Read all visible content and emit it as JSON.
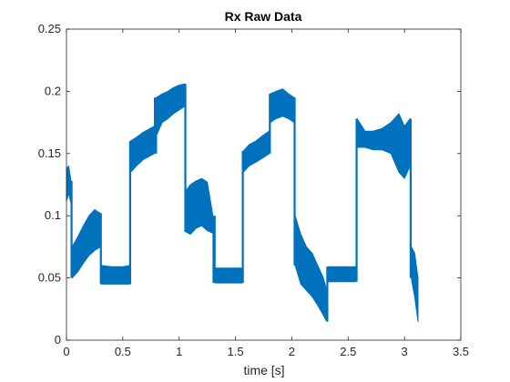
{
  "chart_data": {
    "type": "line",
    "title": "Rx Raw Data",
    "xlabel": "time [s]",
    "ylabel": "",
    "xlim": [
      0,
      3.5
    ],
    "ylim": [
      0,
      0.25
    ],
    "x_ticks": [
      0,
      0.5,
      1,
      1.5,
      2,
      2.5,
      3,
      3.5
    ],
    "x_tick_labels": [
      "0",
      "0.5",
      "1",
      "1.5",
      "2",
      "2.5",
      "3",
      "3.5"
    ],
    "y_ticks": [
      0,
      0.05,
      0.1,
      0.15,
      0.2,
      0.25
    ],
    "y_tick_labels": [
      "0",
      "0.05",
      "0.1",
      "0.15",
      "0.2",
      "0.25"
    ],
    "grid": false,
    "box": true,
    "series": [
      {
        "color": "#0072bd",
        "segments": [
          {
            "x": [
              0.0,
              0.02,
              0.04
            ],
            "low": [
              0.112,
              0.118,
              0.11
            ],
            "high": [
              0.138,
              0.14,
              0.128
            ]
          },
          {
            "x": [
              0.05,
              0.1,
              0.15,
              0.2,
              0.25,
              0.3
            ],
            "low": [
              0.05,
              0.055,
              0.062,
              0.068,
              0.072,
              0.075
            ],
            "high": [
              0.075,
              0.083,
              0.092,
              0.1,
              0.105,
              0.102
            ]
          },
          {
            "x": [
              0.31,
              0.4,
              0.5,
              0.56
            ],
            "low": [
              0.045,
              0.045,
              0.045,
              0.045
            ],
            "high": [
              0.06,
              0.059,
              0.059,
              0.06
            ]
          },
          {
            "x": [
              0.57,
              0.62,
              0.68,
              0.74,
              0.78
            ],
            "low": [
              0.135,
              0.14,
              0.145,
              0.148,
              0.15
            ],
            "high": [
              0.16,
              0.163,
              0.167,
              0.17,
              0.172
            ]
          },
          {
            "x": [
              0.8,
              0.85,
              0.9,
              0.95,
              1.0,
              1.05
            ],
            "low": [
              0.165,
              0.175,
              0.178,
              0.182,
              0.185,
              0.188
            ],
            "high": [
              0.195,
              0.198,
              0.2,
              0.203,
              0.205,
              0.206
            ]
          },
          {
            "x": [
              1.06,
              1.1,
              1.15,
              1.2,
              1.25,
              1.3
            ],
            "low": [
              0.087,
              0.085,
              0.09,
              0.092,
              0.088,
              0.086
            ],
            "high": [
              0.12,
              0.125,
              0.128,
              0.13,
              0.127,
              0.1
            ]
          },
          {
            "x": [
              1.32,
              1.4,
              1.5,
              1.56
            ],
            "low": [
              0.046,
              0.046,
              0.046,
              0.046
            ],
            "high": [
              0.058,
              0.058,
              0.058,
              0.058
            ]
          },
          {
            "x": [
              1.57,
              1.62,
              1.68,
              1.75,
              1.8
            ],
            "low": [
              0.135,
              0.14,
              0.143,
              0.147,
              0.15
            ],
            "high": [
              0.152,
              0.157,
              0.16,
              0.165,
              0.168
            ]
          },
          {
            "x": [
              1.81,
              1.86,
              1.92,
              1.97,
              2.02
            ],
            "low": [
              0.175,
              0.178,
              0.18,
              0.178,
              0.175
            ],
            "high": [
              0.198,
              0.2,
              0.202,
              0.198,
              0.195
            ]
          },
          {
            "x": [
              2.03,
              2.08,
              2.13,
              2.18,
              2.23,
              2.28,
              2.31
            ],
            "low": [
              0.06,
              0.045,
              0.04,
              0.035,
              0.028,
              0.02,
              0.015
            ],
            "high": [
              0.1,
              0.085,
              0.075,
              0.07,
              0.06,
              0.05,
              0.04
            ]
          },
          {
            "x": [
              2.32,
              2.4,
              2.5,
              2.57
            ],
            "low": [
              0.047,
              0.047,
              0.047,
              0.047
            ],
            "high": [
              0.059,
              0.059,
              0.059,
              0.059
            ]
          },
          {
            "x": [
              2.58,
              2.65,
              2.72,
              2.8,
              2.88,
              2.95,
              3.0,
              3.05
            ],
            "low": [
              0.155,
              0.155,
              0.153,
              0.153,
              0.15,
              0.135,
              0.13,
              0.14
            ],
            "high": [
              0.178,
              0.168,
              0.168,
              0.17,
              0.175,
              0.182,
              0.172,
              0.178
            ]
          },
          {
            "x": [
              3.06,
              3.09,
              3.12
            ],
            "low": [
              0.05,
              0.035,
              0.015
            ],
            "high": [
              0.075,
              0.07,
              0.05
            ]
          }
        ]
      }
    ]
  }
}
